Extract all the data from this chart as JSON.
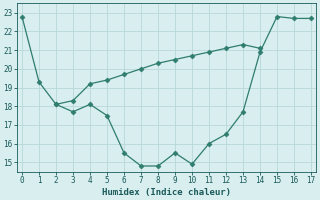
{
  "line1_x": [
    0,
    1,
    2,
    3,
    4,
    5,
    6,
    7,
    8,
    9,
    10,
    11,
    12,
    13,
    14,
    15,
    16,
    17
  ],
  "line1_y": [
    22.8,
    19.3,
    18.1,
    17.7,
    18.1,
    17.5,
    15.5,
    14.8,
    14.8,
    15.5,
    14.9,
    16.0,
    16.5,
    17.7,
    20.9,
    22.8,
    22.7,
    22.7
  ],
  "line2_x": [
    2,
    3,
    4,
    5,
    6,
    7,
    8,
    9,
    10,
    11,
    12,
    13,
    14
  ],
  "line2_y": [
    18.1,
    18.3,
    19.2,
    19.4,
    19.7,
    20.0,
    20.3,
    20.5,
    20.7,
    20.9,
    21.1,
    21.3,
    21.1
  ],
  "line_color": "#2e7d6e",
  "marker": "D",
  "markersize": 2.5,
  "xlabel": "Humidex (Indice chaleur)",
  "xlim": [
    -0.3,
    17.3
  ],
  "ylim": [
    14.5,
    23.5
  ],
  "yticks": [
    15,
    16,
    17,
    18,
    19,
    20,
    21,
    22,
    23
  ],
  "xticks": [
    0,
    1,
    2,
    3,
    4,
    5,
    6,
    7,
    8,
    9,
    10,
    11,
    12,
    13,
    14,
    15,
    16,
    17
  ],
  "bg_color": "#d9eeee",
  "grid_color": "#b8d8d8",
  "text_color": "#1a5a5a",
  "figsize": [
    3.2,
    2.0
  ],
  "dpi": 100
}
